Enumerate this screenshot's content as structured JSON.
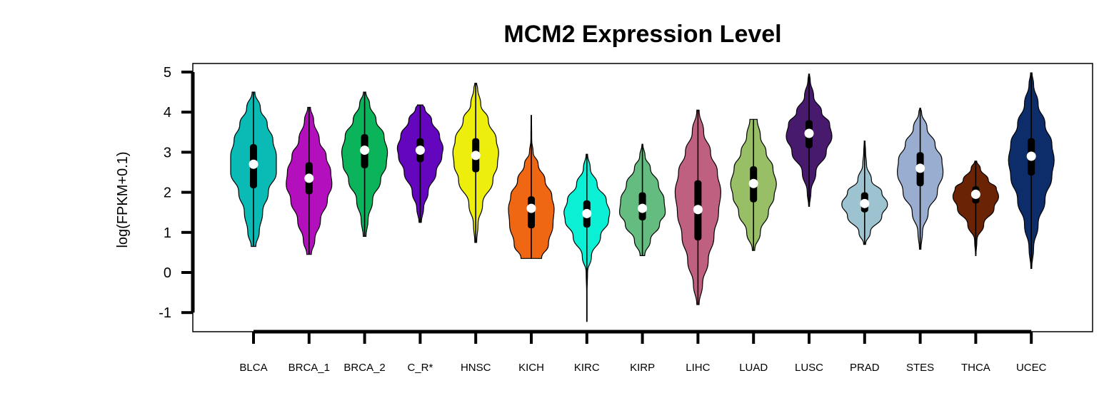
{
  "chart_data": {
    "type": "violin",
    "title": "MCM2 Expression Level",
    "xlabel": "",
    "ylabel": "log(FPKM+0.1)",
    "ylim": [
      -1.5,
      5.2
    ],
    "yticks": [
      -1,
      0,
      1,
      2,
      3,
      4,
      5
    ],
    "grid": false,
    "legend": "none",
    "categories": [
      "BLCA",
      "BRCA_1",
      "BRCA_2",
      "C_R*",
      "HNSC",
      "KICH",
      "KIRC",
      "KIRP",
      "LIHC",
      "LUAD",
      "LUSC",
      "PRAD",
      "STES",
      "THCA",
      "UCEC"
    ],
    "series": [
      {
        "category": "BLCA",
        "color": "#0ABAB5",
        "min": 0.65,
        "q1": 2.1,
        "median": 2.7,
        "q3": 3.2,
        "max": 4.5,
        "density": [
          [
            0.65,
            0.1
          ],
          [
            1.0,
            0.25
          ],
          [
            1.5,
            0.4
          ],
          [
            2.0,
            0.65
          ],
          [
            2.5,
            1.0
          ],
          [
            2.9,
            1.0
          ],
          [
            3.3,
            0.85
          ],
          [
            3.7,
            0.6
          ],
          [
            4.1,
            0.3
          ],
          [
            4.5,
            0.06
          ]
        ]
      },
      {
        "category": "BRCA_1",
        "color": "#B40FBC",
        "min": 0.45,
        "q1": 1.95,
        "median": 2.35,
        "q3": 2.75,
        "max": 4.12,
        "density": [
          [
            0.45,
            0.1
          ],
          [
            0.8,
            0.25
          ],
          [
            1.3,
            0.5
          ],
          [
            1.8,
            0.8
          ],
          [
            2.2,
            1.0
          ],
          [
            2.5,
            0.95
          ],
          [
            2.9,
            0.75
          ],
          [
            3.3,
            0.45
          ],
          [
            3.8,
            0.2
          ],
          [
            4.12,
            0.06
          ]
        ]
      },
      {
        "category": "BRCA_2",
        "color": "#0BB35B",
        "min": 0.9,
        "q1": 2.6,
        "median": 3.05,
        "q3": 3.45,
        "max": 4.5,
        "density": [
          [
            0.9,
            0.06
          ],
          [
            1.3,
            0.15
          ],
          [
            1.8,
            0.35
          ],
          [
            2.3,
            0.7
          ],
          [
            2.7,
            0.95
          ],
          [
            3.0,
            1.0
          ],
          [
            3.4,
            0.85
          ],
          [
            3.8,
            0.5
          ],
          [
            4.2,
            0.22
          ],
          [
            4.5,
            0.05
          ]
        ]
      },
      {
        "category": "C_R*",
        "color": "#6406BD",
        "min": 1.25,
        "q1": 2.75,
        "median": 3.05,
        "q3": 3.35,
        "max": 4.18,
        "density": [
          [
            1.25,
            0.05
          ],
          [
            1.6,
            0.15
          ],
          [
            2.0,
            0.35
          ],
          [
            2.5,
            0.7
          ],
          [
            2.9,
            0.95
          ],
          [
            3.1,
            1.0
          ],
          [
            3.4,
            0.85
          ],
          [
            3.8,
            0.5
          ],
          [
            4.1,
            0.2
          ],
          [
            4.18,
            0.12
          ]
        ]
      },
      {
        "category": "HNSC",
        "color": "#EEEE0C",
        "min": 0.75,
        "q1": 2.5,
        "median": 2.92,
        "q3": 3.35,
        "max": 4.72,
        "density": [
          [
            0.75,
            0.04
          ],
          [
            1.2,
            0.1
          ],
          [
            1.7,
            0.3
          ],
          [
            2.3,
            0.75
          ],
          [
            2.7,
            0.95
          ],
          [
            3.0,
            1.0
          ],
          [
            3.3,
            0.9
          ],
          [
            3.8,
            0.55
          ],
          [
            4.2,
            0.22
          ],
          [
            4.6,
            0.08
          ],
          [
            4.72,
            0.04
          ]
        ]
      },
      {
        "category": "KICH",
        "color": "#EF6712",
        "min": 0.35,
        "q1": 1.1,
        "median": 1.6,
        "q3": 1.9,
        "max": 3.92,
        "density": [
          [
            0.35,
            0.45
          ],
          [
            0.7,
            0.75
          ],
          [
            1.2,
            0.95
          ],
          [
            1.6,
            1.0
          ],
          [
            1.9,
            0.9
          ],
          [
            2.3,
            0.6
          ],
          [
            2.7,
            0.3
          ],
          [
            3.0,
            0.08
          ],
          [
            3.3,
            0.02
          ],
          [
            3.92,
            0.01
          ]
        ]
      },
      {
        "category": "KIRC",
        "color": "#0BF0D4",
        "min": -1.22,
        "q1": 1.12,
        "median": 1.47,
        "q3": 1.8,
        "max": 2.95,
        "density": [
          [
            -1.22,
            0.01
          ],
          [
            -0.5,
            0.01
          ],
          [
            0.0,
            0.03
          ],
          [
            0.4,
            0.2
          ],
          [
            0.9,
            0.6
          ],
          [
            1.3,
            0.95
          ],
          [
            1.5,
            1.0
          ],
          [
            1.8,
            0.85
          ],
          [
            2.2,
            0.45
          ],
          [
            2.6,
            0.15
          ],
          [
            2.95,
            0.03
          ]
        ]
      },
      {
        "category": "KIRP",
        "color": "#65BC80",
        "min": 0.42,
        "q1": 1.3,
        "median": 1.6,
        "q3": 2.0,
        "max": 3.2,
        "density": [
          [
            0.42,
            0.1
          ],
          [
            0.8,
            0.35
          ],
          [
            1.2,
            0.75
          ],
          [
            1.5,
            1.0
          ],
          [
            1.8,
            0.95
          ],
          [
            2.2,
            0.7
          ],
          [
            2.6,
            0.35
          ],
          [
            2.9,
            0.12
          ],
          [
            3.2,
            0.02
          ]
        ]
      },
      {
        "category": "LIHC",
        "color": "#C06080",
        "min": -0.8,
        "q1": 0.8,
        "median": 1.57,
        "q3": 2.3,
        "max": 4.05,
        "density": [
          [
            -0.8,
            0.05
          ],
          [
            -0.3,
            0.2
          ],
          [
            0.3,
            0.45
          ],
          [
            0.9,
            0.7
          ],
          [
            1.5,
            0.9
          ],
          [
            2.0,
            1.0
          ],
          [
            2.5,
            0.85
          ],
          [
            3.0,
            0.55
          ],
          [
            3.5,
            0.25
          ],
          [
            4.05,
            0.05
          ]
        ]
      },
      {
        "category": "LUAD",
        "color": "#98BF66",
        "min": 0.55,
        "q1": 1.75,
        "median": 2.22,
        "q3": 2.65,
        "max": 3.82,
        "density": [
          [
            0.55,
            0.05
          ],
          [
            1.0,
            0.3
          ],
          [
            1.5,
            0.65
          ],
          [
            1.9,
            0.9
          ],
          [
            2.2,
            1.0
          ],
          [
            2.6,
            0.85
          ],
          [
            3.0,
            0.55
          ],
          [
            3.4,
            0.3
          ],
          [
            3.82,
            0.16
          ]
        ]
      },
      {
        "category": "LUSC",
        "color": "#481A6E",
        "min": 1.65,
        "q1": 3.1,
        "median": 3.47,
        "q3": 3.8,
        "max": 4.95,
        "density": [
          [
            1.65,
            0.02
          ],
          [
            2.0,
            0.08
          ],
          [
            2.5,
            0.3
          ],
          [
            3.0,
            0.75
          ],
          [
            3.4,
            1.0
          ],
          [
            3.7,
            0.9
          ],
          [
            4.0,
            0.55
          ],
          [
            4.4,
            0.2
          ],
          [
            4.8,
            0.05
          ],
          [
            4.95,
            0.02
          ]
        ]
      },
      {
        "category": "PRAD",
        "color": "#9DC3D0",
        "min": 0.7,
        "q1": 1.5,
        "median": 1.72,
        "q3": 2.0,
        "max": 3.28,
        "density": [
          [
            0.7,
            0.04
          ],
          [
            1.0,
            0.25
          ],
          [
            1.4,
            0.75
          ],
          [
            1.7,
            1.0
          ],
          [
            2.0,
            0.75
          ],
          [
            2.3,
            0.3
          ],
          [
            2.7,
            0.08
          ],
          [
            3.0,
            0.04
          ],
          [
            3.28,
            0.02
          ]
        ]
      },
      {
        "category": "STES",
        "color": "#99ADD0",
        "min": 0.58,
        "q1": 2.15,
        "median": 2.6,
        "q3": 3.0,
        "max": 4.1,
        "density": [
          [
            0.58,
            0.03
          ],
          [
            1.0,
            0.1
          ],
          [
            1.5,
            0.35
          ],
          [
            2.0,
            0.75
          ],
          [
            2.5,
            1.0
          ],
          [
            2.8,
            0.95
          ],
          [
            3.2,
            0.65
          ],
          [
            3.6,
            0.3
          ],
          [
            4.0,
            0.06
          ],
          [
            4.1,
            0.02
          ]
        ]
      },
      {
        "category": "THCA",
        "color": "#6A2305",
        "min": 0.42,
        "q1": 1.72,
        "median": 1.95,
        "q3": 2.15,
        "max": 2.78,
        "density": [
          [
            0.42,
            0.01
          ],
          [
            0.8,
            0.05
          ],
          [
            1.2,
            0.35
          ],
          [
            1.6,
            0.8
          ],
          [
            1.9,
            1.0
          ],
          [
            2.1,
            0.9
          ],
          [
            2.3,
            0.55
          ],
          [
            2.6,
            0.2
          ],
          [
            2.78,
            0.04
          ]
        ]
      },
      {
        "category": "UCEC",
        "color": "#0C2D6A",
        "min": 0.1,
        "q1": 2.42,
        "median": 2.9,
        "q3": 3.35,
        "max": 4.98,
        "density": [
          [
            0.1,
            0.02
          ],
          [
            0.6,
            0.1
          ],
          [
            1.2,
            0.3
          ],
          [
            1.8,
            0.6
          ],
          [
            2.4,
            0.9
          ],
          [
            2.8,
            1.0
          ],
          [
            3.2,
            0.9
          ],
          [
            3.7,
            0.6
          ],
          [
            4.2,
            0.3
          ],
          [
            4.7,
            0.1
          ],
          [
            4.98,
            0.03
          ]
        ]
      }
    ]
  }
}
